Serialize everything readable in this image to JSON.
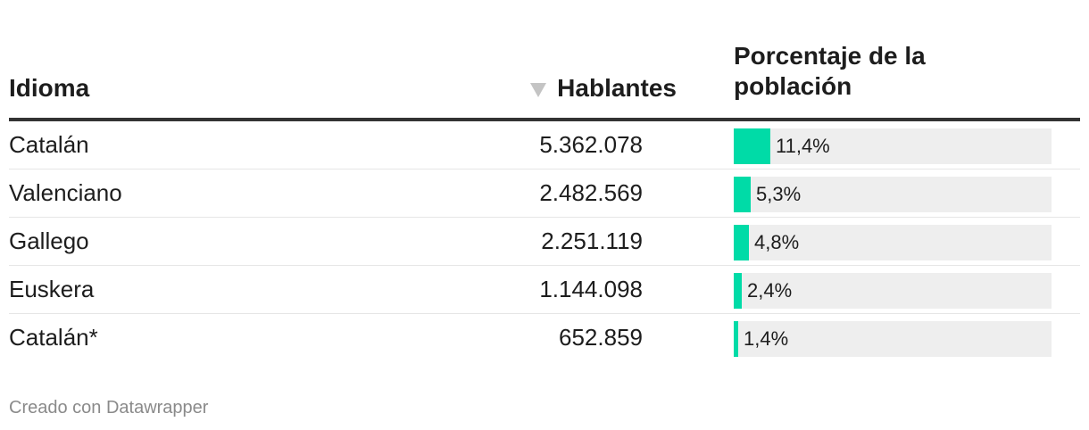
{
  "header": {
    "col_language": "Idioma",
    "col_speakers": "Hablantes",
    "col_percent": "Porcentaje de la población"
  },
  "colors": {
    "bar": "#00dba7",
    "track": "#eeeeee"
  },
  "chart_data": {
    "type": "table",
    "columns": [
      "Idioma",
      "Hablantes",
      "Porcentaje de la población"
    ],
    "sort": {
      "column": "Hablantes",
      "direction": "descending"
    },
    "bar_max_percent": 100,
    "rows": [
      {
        "idioma": "Catalán",
        "hablantes": "5.362.078",
        "pct": 11.4,
        "pct_label": "11,4%"
      },
      {
        "idioma": "Valenciano",
        "hablantes": "2.482.569",
        "pct": 5.3,
        "pct_label": "5,3%"
      },
      {
        "idioma": "Gallego",
        "hablantes": "2.251.119",
        "pct": 4.8,
        "pct_label": "4,8%"
      },
      {
        "idioma": "Euskera",
        "hablantes": "1.144.098",
        "pct": 2.4,
        "pct_label": "2,4%"
      },
      {
        "idioma": "Catalán*",
        "hablantes": "652.859",
        "pct": 1.4,
        "pct_label": "1,4%"
      }
    ]
  },
  "footer": {
    "credit": "Creado con Datawrapper"
  }
}
